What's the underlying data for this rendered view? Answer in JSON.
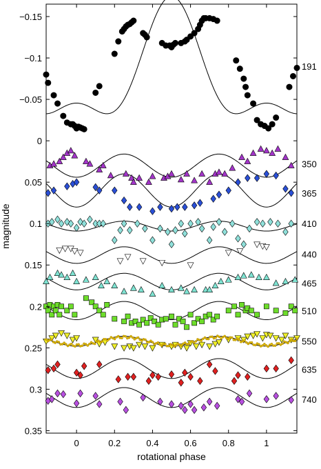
{
  "chart_data": {
    "type": "scatter",
    "xlabel": "rotational phase",
    "ylabel": "magnitude",
    "xlim": [
      -0.16,
      1.16
    ],
    "ylim": [
      0.353,
      -0.165
    ],
    "y_inverted": true,
    "grid": false,
    "x_ticks": [
      0,
      0.2,
      0.4,
      0.6,
      0.8,
      1
    ],
    "x_tick_labels": [
      "0",
      "0.2",
      "0.4",
      "0.6",
      "0.8",
      "1"
    ],
    "y_ticks": [
      -0.15,
      -0.1,
      -0.05,
      0,
      0.05,
      0.1,
      0.15,
      0.2,
      0.25,
      0.3,
      0.35
    ],
    "y_tick_labels": [
      "−0.15",
      "−0.1",
      "−0.05",
      "0",
      "0.05",
      "0.1",
      "0.15",
      "0.2",
      "0.25",
      "0.3",
      "0.35"
    ],
    "series": [
      {
        "name": "191",
        "offset": -0.06,
        "amp": 0.09,
        "marker": "circle",
        "color": "#000000",
        "x": [
          -0.16,
          -0.15,
          -0.12,
          -0.1,
          -0.07,
          -0.05,
          -0.03,
          -0.02,
          -0.01,
          0,
          0.01,
          0.02,
          0.03,
          0.04,
          0.1,
          0.12,
          0.2,
          0.22,
          0.24,
          0.25,
          0.26,
          0.27,
          0.28,
          0.29,
          0.3,
          0.35,
          0.36,
          0.37,
          0.45,
          0.47,
          0.49,
          0.5,
          0.51,
          0.52,
          0.55,
          0.57,
          0.58,
          0.6,
          0.62,
          0.64,
          0.65,
          0.66,
          0.67,
          0.68,
          0.7,
          0.72,
          0.74,
          0.84,
          0.86,
          0.88,
          0.89,
          0.9,
          0.93,
          0.95,
          0.97,
          0.99,
          1.01,
          1.03,
          1.05,
          1.12,
          1.14,
          1.16
        ],
        "y": [
          -0.08,
          -0.07,
          -0.055,
          -0.045,
          -0.03,
          -0.022,
          -0.02,
          -0.02,
          -0.018,
          -0.015,
          -0.017,
          -0.016,
          -0.015,
          -0.014,
          -0.058,
          -0.066,
          -0.105,
          -0.12,
          -0.132,
          -0.135,
          -0.138,
          -0.14,
          -0.141,
          -0.143,
          -0.145,
          -0.13,
          -0.128,
          -0.125,
          -0.118,
          -0.115,
          -0.115,
          -0.113,
          -0.116,
          -0.118,
          -0.118,
          -0.12,
          -0.122,
          -0.126,
          -0.13,
          -0.135,
          -0.14,
          -0.145,
          -0.148,
          -0.148,
          -0.148,
          -0.147,
          -0.145,
          -0.097,
          -0.087,
          -0.075,
          -0.065,
          -0.055,
          -0.045,
          -0.025,
          -0.02,
          -0.018,
          -0.015,
          -0.02,
          -0.028,
          -0.065,
          -0.078,
          -0.088
        ]
      },
      {
        "name": "350",
        "offset": 0.03,
        "amp": 0.014,
        "marker": "triangle-up",
        "color": "#a335c9",
        "x": [
          -0.14,
          -0.12,
          -0.09,
          -0.07,
          -0.05,
          -0.03,
          -0.01,
          0.05,
          0.07,
          0.12,
          0.14,
          0.18,
          0.26,
          0.29,
          0.3,
          0.33,
          0.38,
          0.4,
          0.46,
          0.48,
          0.5,
          0.55,
          0.58,
          0.62,
          0.66,
          0.7,
          0.73,
          0.75,
          0.78,
          0.82,
          0.87,
          0.9,
          0.93,
          0.97,
          1.0,
          1.03,
          1.06,
          1.1,
          1.13
        ],
        "y": [
          0.03,
          0.028,
          0.025,
          0.02,
          0.015,
          0.012,
          0.018,
          0.025,
          0.028,
          0.035,
          0.03,
          0.042,
          0.04,
          0.045,
          0.05,
          0.045,
          0.05,
          0.043,
          0.045,
          0.043,
          0.04,
          0.047,
          0.04,
          0.048,
          0.04,
          0.05,
          0.04,
          0.038,
          0.04,
          0.033,
          0.02,
          0.025,
          0.015,
          0.01,
          0.012,
          0.015,
          0.01,
          0.02,
          0.03
        ]
      },
      {
        "name": "365",
        "offset": 0.06,
        "amp": 0.02,
        "marker": "diamond",
        "color": "#2a4fd6",
        "x": [
          -0.15,
          -0.12,
          -0.05,
          -0.02,
          0.0,
          0.1,
          0.12,
          0.2,
          0.25,
          0.28,
          0.33,
          0.4,
          0.44,
          0.5,
          0.53,
          0.57,
          0.62,
          0.65,
          0.72,
          0.75,
          0.8,
          0.85,
          0.9,
          0.95,
          1.0,
          1.05,
          1.1,
          1.13
        ],
        "y": [
          0.063,
          0.06,
          0.055,
          0.052,
          0.05,
          0.056,
          0.06,
          0.06,
          0.072,
          0.08,
          0.08,
          0.085,
          0.08,
          0.082,
          0.08,
          0.08,
          0.078,
          0.075,
          0.07,
          0.065,
          0.06,
          0.05,
          0.045,
          0.045,
          0.04,
          0.042,
          0.058,
          0.063
        ]
      },
      {
        "name": "410",
        "offset": 0.103,
        "amp": 0.006,
        "marker": "diamond",
        "color": "#8fe0da",
        "x": [
          -0.15,
          -0.13,
          -0.1,
          -0.08,
          -0.05,
          -0.03,
          0.0,
          0.02,
          0.04,
          0.07,
          0.1,
          0.12,
          0.14,
          0.2,
          0.23,
          0.25,
          0.28,
          0.32,
          0.36,
          0.4,
          0.44,
          0.48,
          0.5,
          0.52,
          0.55,
          0.57,
          0.6,
          0.64,
          0.66,
          0.7,
          0.72,
          0.75,
          0.78,
          0.82,
          0.85,
          0.88,
          0.91,
          0.95,
          0.98,
          1.02,
          1.06,
          1.1,
          1.13
        ],
        "y": [
          0.1,
          0.098,
          0.095,
          0.1,
          0.098,
          0.1,
          0.105,
          0.098,
          0.1,
          0.095,
          0.1,
          0.1,
          0.1,
          0.12,
          0.108,
          0.1,
          0.108,
          0.1,
          0.106,
          0.12,
          0.106,
          0.11,
          0.125,
          0.108,
          0.1,
          0.112,
          0.1,
          0.098,
          0.106,
          0.12,
          0.104,
          0.098,
          0.11,
          0.1,
          0.118,
          0.125,
          0.106,
          0.098,
          0.1,
          0.098,
          0.1,
          0.11,
          0.1
        ]
      },
      {
        "name": "440",
        "offset": 0.138,
        "amp": 0.01,
        "marker": "triangle-down",
        "color": "#ffffff",
        "x": [
          -0.09,
          -0.06,
          -0.03,
          -0.01,
          0.02,
          0.23,
          0.27,
          0.35,
          0.45,
          0.6,
          0.8,
          0.86,
          0.95,
          0.98,
          1.0
        ],
        "y": [
          0.132,
          0.13,
          0.13,
          0.133,
          0.135,
          0.145,
          0.14,
          0.145,
          0.147,
          0.15,
          0.135,
          0.133,
          0.125,
          0.127,
          0.128
        ]
      },
      {
        "name": "465",
        "offset": 0.17,
        "amp": 0.01,
        "marker": "triangle-up",
        "color": "#7fe3d2",
        "x": [
          -0.16,
          -0.14,
          -0.1,
          -0.08,
          -0.05,
          -0.02,
          0.0,
          0.05,
          0.1,
          0.13,
          0.16,
          0.2,
          0.25,
          0.3,
          0.34,
          0.4,
          0.45,
          0.5,
          0.55,
          0.58,
          0.62,
          0.68,
          0.7,
          0.73,
          0.76,
          0.8,
          0.85,
          0.88,
          0.92,
          0.96,
          1.0,
          1.05,
          1.1,
          1.15
        ],
        "y": [
          0.17,
          0.165,
          0.16,
          0.162,
          0.165,
          0.16,
          0.17,
          0.168,
          0.165,
          0.175,
          0.17,
          0.175,
          0.182,
          0.178,
          0.18,
          0.185,
          0.175,
          0.18,
          0.178,
          0.182,
          0.18,
          0.18,
          0.18,
          0.175,
          0.17,
          0.168,
          0.165,
          0.163,
          0.162,
          0.165,
          0.165,
          0.172,
          0.17,
          0.168
        ]
      },
      {
        "name": "510",
        "offset": 0.205,
        "amp": 0.011,
        "marker": "square",
        "color": "#6ddd2a",
        "x": [
          -0.16,
          -0.15,
          -0.14,
          -0.13,
          -0.12,
          -0.11,
          -0.1,
          -0.09,
          -0.08,
          -0.05,
          -0.03,
          -0.01,
          0.05,
          0.08,
          0.1,
          0.12,
          0.14,
          0.16,
          0.2,
          0.25,
          0.27,
          0.29,
          0.31,
          0.33,
          0.35,
          0.37,
          0.39,
          0.41,
          0.43,
          0.45,
          0.47,
          0.5,
          0.52,
          0.54,
          0.56,
          0.58,
          0.6,
          0.62,
          0.64,
          0.66,
          0.68,
          0.7,
          0.72,
          0.74,
          0.8,
          0.83,
          0.85,
          0.87,
          0.89,
          0.9,
          0.92,
          0.95,
          1.0,
          1.05,
          1.1,
          1.13,
          1.15
        ],
        "y": [
          0.2,
          0.205,
          0.198,
          0.21,
          0.2,
          0.205,
          0.198,
          0.21,
          0.2,
          0.205,
          0.2,
          0.21,
          0.19,
          0.195,
          0.2,
          0.205,
          0.21,
          0.198,
          0.215,
          0.218,
          0.212,
          0.22,
          0.218,
          0.222,
          0.216,
          0.22,
          0.214,
          0.218,
          0.222,
          0.216,
          0.215,
          0.212,
          0.222,
          0.215,
          0.218,
          0.225,
          0.21,
          0.22,
          0.215,
          0.218,
          0.212,
          0.21,
          0.216,
          0.212,
          0.205,
          0.2,
          0.21,
          0.198,
          0.205,
          0.202,
          0.205,
          0.21,
          0.2,
          0.205,
          0.208,
          0.2,
          0.205
        ]
      },
      {
        "name": "550",
        "offset": 0.242,
        "amp": 0.006,
        "marker": "triangle-down",
        "color": "#f0f02a",
        "x": [
          -0.16,
          -0.13,
          -0.11,
          -0.08,
          -0.05,
          -0.02,
          0.0,
          0.1,
          0.12,
          0.15,
          0.2,
          0.25,
          0.28,
          0.3,
          0.33,
          0.36,
          0.4,
          0.45,
          0.5,
          0.52,
          0.55,
          0.58,
          0.6,
          0.63,
          0.66,
          0.7,
          0.73,
          0.75,
          0.8,
          0.85,
          0.88,
          0.9,
          0.93,
          0.95,
          0.98,
          1.0,
          1.02,
          1.05,
          1.08,
          1.1,
          1.13,
          1.16
        ],
        "y": [
          0.242,
          0.238,
          0.235,
          0.232,
          0.235,
          0.24,
          0.238,
          0.24,
          0.245,
          0.243,
          0.248,
          0.25,
          0.248,
          0.25,
          0.246,
          0.248,
          0.25,
          0.246,
          0.248,
          0.246,
          0.248,
          0.25,
          0.244,
          0.248,
          0.246,
          0.248,
          0.245,
          0.243,
          0.24,
          0.238,
          0.24,
          0.236,
          0.235,
          0.233,
          0.238,
          0.234,
          0.235,
          0.238,
          0.24,
          0.235,
          0.24,
          0.238
        ]
      },
      {
        "name": "550 (dense)",
        "offset": 0.242,
        "amp": 0.005,
        "marker": "small-circle",
        "color": "#d9b400",
        "dense": true,
        "n": 140
      },
      {
        "name": "635",
        "offset": 0.275,
        "amp": 0.012,
        "marker": "diamond",
        "color": "#e02020",
        "x": [
          -0.15,
          -0.12,
          -0.1,
          0.0,
          0.02,
          0.04,
          0.12,
          0.22,
          0.27,
          0.3,
          0.38,
          0.4,
          0.43,
          0.5,
          0.55,
          0.57,
          0.6,
          0.65,
          0.7,
          0.73,
          0.83,
          0.85,
          0.9,
          1.0,
          1.05,
          1.13
        ],
        "y": [
          0.277,
          0.275,
          0.27,
          0.28,
          0.283,
          0.272,
          0.27,
          0.288,
          0.285,
          0.285,
          0.29,
          0.283,
          0.285,
          0.282,
          0.292,
          0.28,
          0.285,
          0.29,
          0.27,
          0.278,
          0.29,
          0.283,
          0.285,
          0.275,
          0.275,
          0.265
        ]
      },
      {
        "name": "740",
        "offset": 0.31,
        "amp": 0.012,
        "marker": "diamond",
        "color": "#b84fe0",
        "x": [
          -0.15,
          -0.13,
          -0.1,
          -0.07,
          0.0,
          0.02,
          0.1,
          0.12,
          0.23,
          0.26,
          0.35,
          0.44,
          0.5,
          0.55,
          0.57,
          0.6,
          0.62,
          0.67,
          0.7,
          0.74,
          0.85,
          0.87,
          0.91,
          1.0,
          1.05,
          1.13
        ],
        "y": [
          0.314,
          0.312,
          0.305,
          0.306,
          0.317,
          0.305,
          0.308,
          0.318,
          0.315,
          0.325,
          0.31,
          0.315,
          0.318,
          0.32,
          0.325,
          0.318,
          0.325,
          0.322,
          0.315,
          0.32,
          0.312,
          0.315,
          0.305,
          0.312,
          0.308,
          0.313
        ]
      }
    ]
  }
}
